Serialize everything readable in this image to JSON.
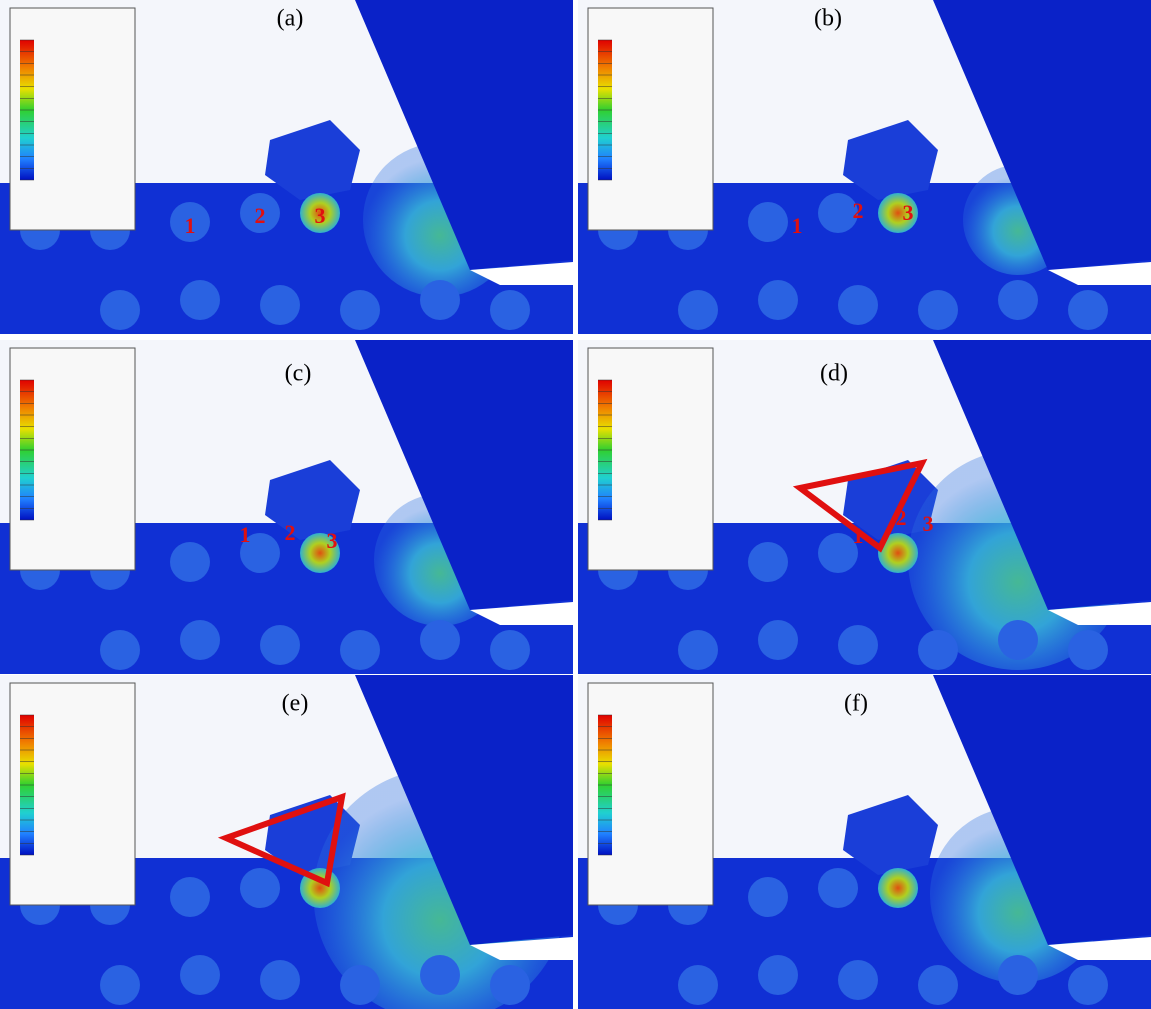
{
  "panels": [
    {
      "label": "(a)",
      "markers": [
        "1",
        "2",
        "3"
      ]
    },
    {
      "label": "(b)",
      "markers": [
        "1",
        "2",
        "3"
      ]
    },
    {
      "label": "(c)",
      "markers": [
        "1",
        "2",
        "3"
      ]
    },
    {
      "label": "(d)",
      "markers": [
        "1",
        "2",
        "3"
      ]
    },
    {
      "label": "(e)",
      "markers": []
    },
    {
      "label": "(f)",
      "markers": []
    }
  ]
}
